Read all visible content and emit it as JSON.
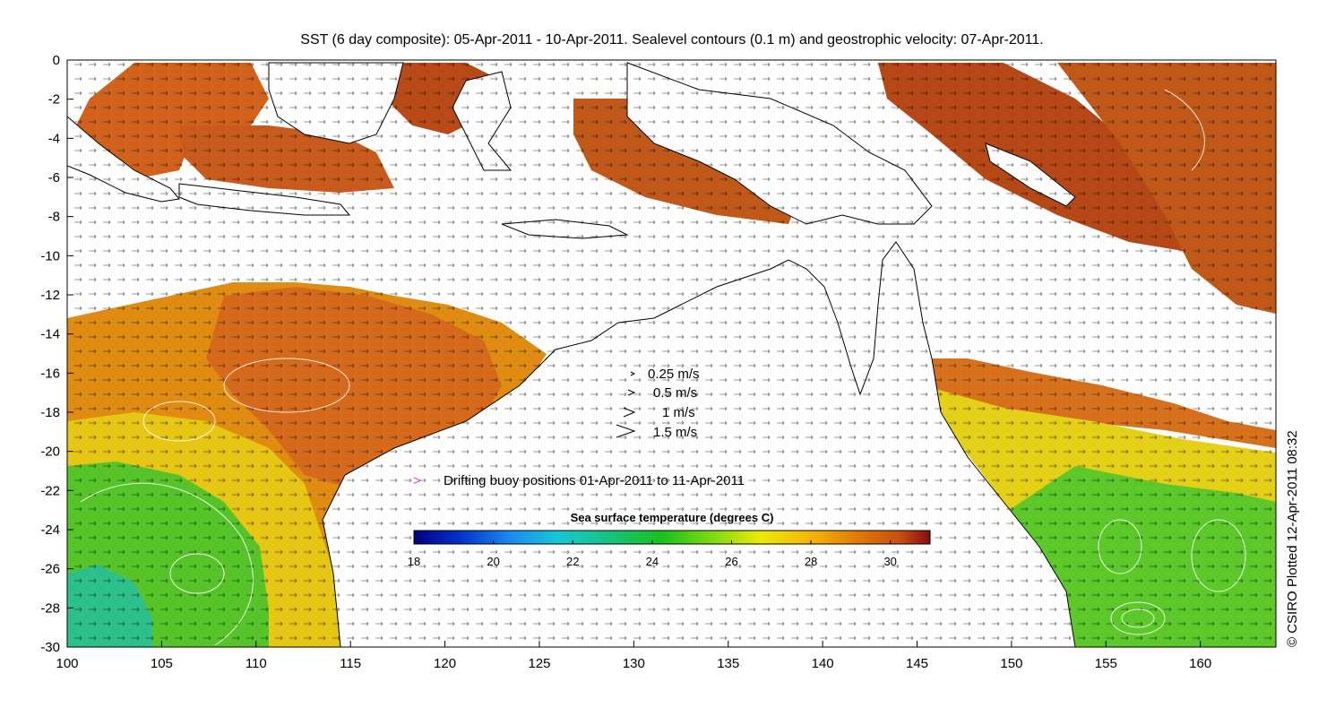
{
  "title": "SST (6 day composite): 05-Apr-2011 - 10-Apr-2011. Sealevel contours (0.1 m) and geostrophic velocity: 07-Apr-2011.",
  "credit": "© CSIRO Plotted 12-Apr-2011 08:32",
  "axes": {
    "x_ticks": [
      "100",
      "105",
      "110",
      "115",
      "120",
      "125",
      "130",
      "135",
      "140",
      "145",
      "150",
      "155",
      "160"
    ],
    "y_ticks": [
      "0",
      "-2",
      "-4",
      "-6",
      "-8",
      "-10",
      "-12",
      "-14",
      "-16",
      "-18",
      "-20",
      "-22",
      "-24",
      "-26",
      "-28",
      "-30"
    ],
    "x_range": [
      100,
      164
    ],
    "y_range": [
      -30,
      0
    ]
  },
  "velocity_legend": [
    {
      "label": "0.25 m/s",
      "speed": 0.25
    },
    {
      "label": "0.5 m/s",
      "speed": 0.5
    },
    {
      "label": "1 m/s",
      "speed": 1
    },
    {
      "label": "1.5 m/s",
      "speed": 1.5
    }
  ],
  "buoy_legend": {
    "symbol": ">",
    "label": "Drifting buoy positions 01-Apr-2011 to 11-Apr-2011",
    "color": "#e040e0"
  },
  "colorbar": {
    "title": "Sea surface temperature (degrees C)",
    "ticks": [
      "18",
      "20",
      "22",
      "24",
      "26",
      "28",
      "30"
    ],
    "range": [
      18,
      31
    ],
    "colors": [
      "#00007f",
      "#0033cc",
      "#1c8cf0",
      "#16c8d6",
      "#18c27a",
      "#18c21a",
      "#7fda12",
      "#eaea08",
      "#f6b406",
      "#e07a06",
      "#c8500e",
      "#8a0c0c"
    ]
  },
  "colors": {
    "land": "#ffffff",
    "coastline": "#000000",
    "warm_sst": "#d2661a",
    "hot_sst": "#b0441a",
    "mid_sst": "#e89010",
    "cool_sst": "#d8e01a",
    "cold_sst": "#46c832",
    "coldest_sst": "#1ec8a8"
  }
}
